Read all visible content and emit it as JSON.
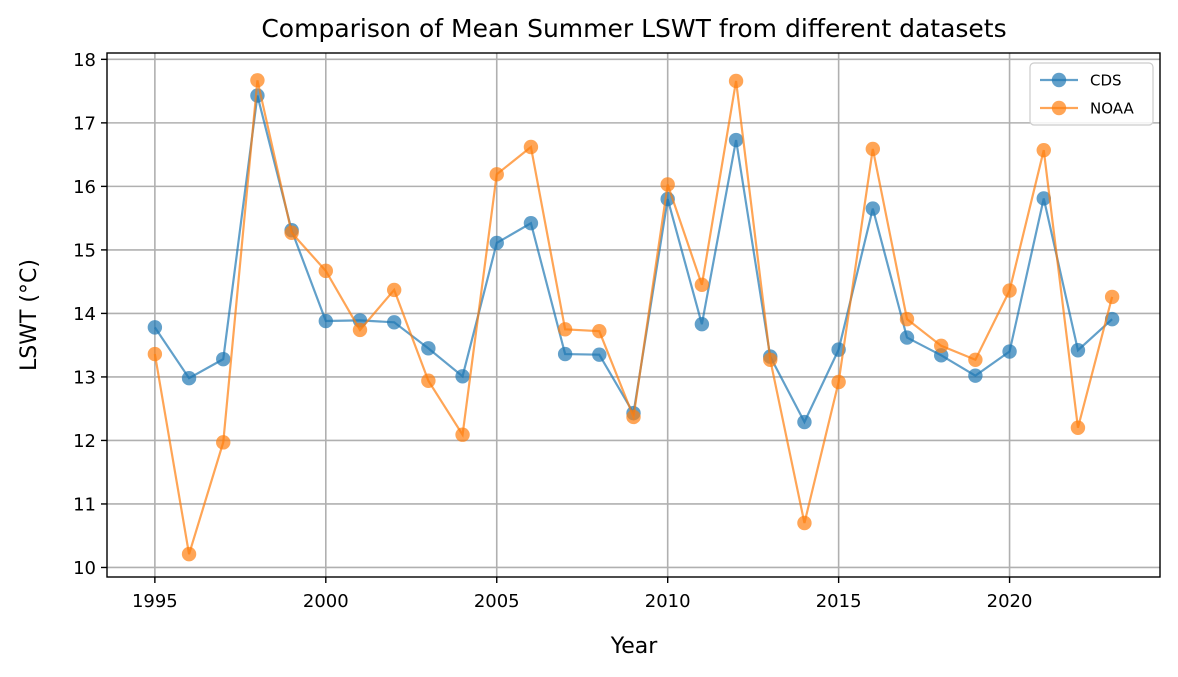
{
  "chart_data": {
    "type": "line",
    "title": "Comparison of Mean Summer LSWT from different datasets",
    "xlabel": "Year",
    "ylabel": "LSWT (°C)",
    "xlim": [
      1993.6,
      2024.4
    ],
    "ylim": [
      9.85,
      18.1
    ],
    "xticks": [
      1995,
      2000,
      2005,
      2010,
      2015,
      2020
    ],
    "yticks": [
      10,
      11,
      12,
      13,
      14,
      15,
      16,
      17,
      18
    ],
    "grid": true,
    "legend_position": "top-right",
    "x": [
      1995,
      1996,
      1997,
      1998,
      1999,
      2000,
      2001,
      2002,
      2003,
      2004,
      2005,
      2006,
      2007,
      2008,
      2009,
      2010,
      2011,
      2012,
      2013,
      2014,
      2015,
      2016,
      2017,
      2018,
      2019,
      2020,
      2021,
      2022,
      2023
    ],
    "series": [
      {
        "name": "CDS",
        "color": "#1f77b4",
        "values": [
          13.78,
          12.98,
          13.28,
          17.43,
          15.31,
          13.88,
          13.89,
          13.86,
          13.45,
          13.01,
          15.11,
          15.42,
          13.36,
          13.35,
          12.43,
          15.8,
          13.83,
          16.73,
          13.32,
          12.29,
          13.43,
          15.65,
          13.62,
          13.34,
          13.02,
          13.4,
          15.81,
          13.42,
          13.91
        ]
      },
      {
        "name": "NOAA",
        "color": "#ff7f0e",
        "values": [
          13.36,
          10.21,
          11.97,
          17.67,
          15.27,
          14.67,
          13.74,
          14.37,
          12.94,
          12.09,
          16.19,
          16.62,
          13.75,
          13.72,
          12.37,
          16.03,
          14.45,
          17.66,
          13.27,
          10.7,
          12.92,
          16.59,
          13.91,
          13.49,
          13.27,
          14.36,
          16.57,
          12.2,
          14.26
        ]
      }
    ]
  }
}
